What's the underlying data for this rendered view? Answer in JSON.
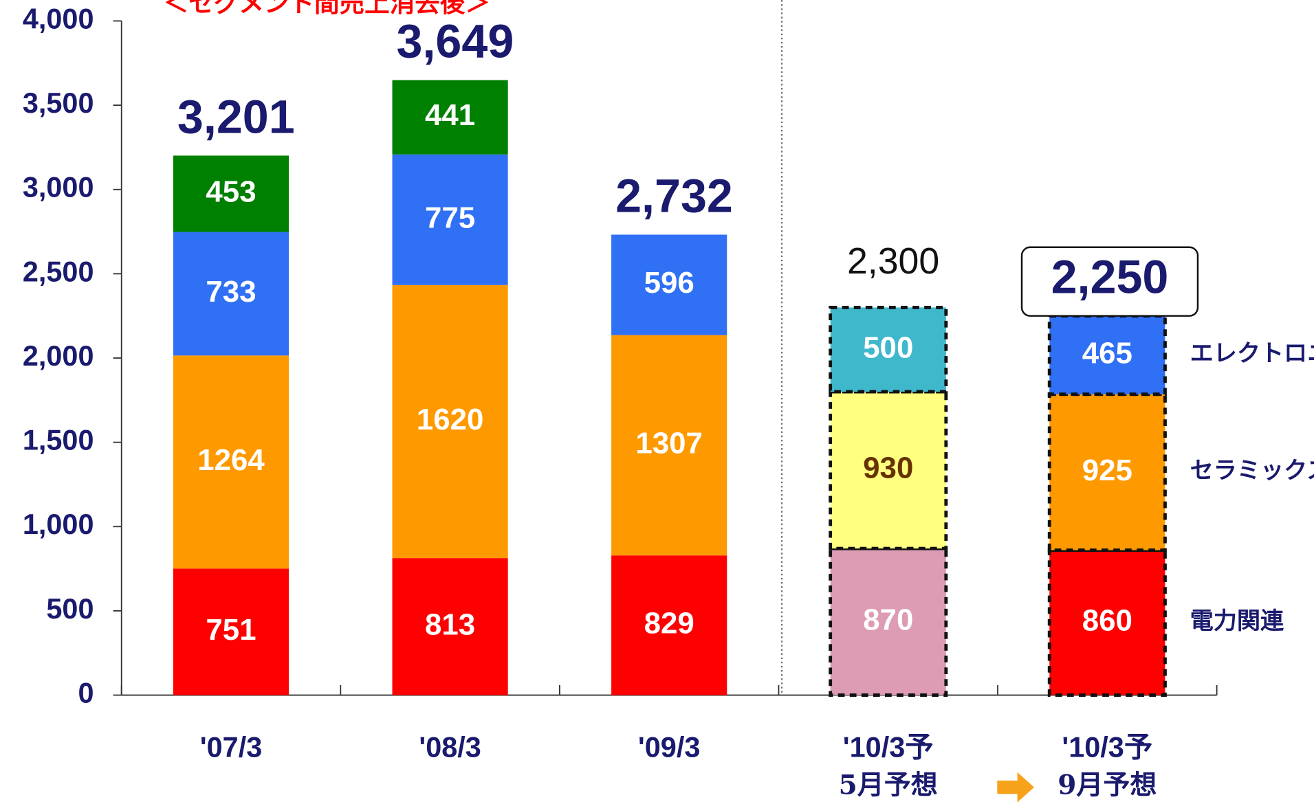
{
  "chart_data": {
    "type": "stacked-bar",
    "annotation": "＜セグメント間売上消去後＞",
    "categories": [
      "'07/3",
      "'08/3",
      "'09/3",
      "'10/3予",
      "'10/3予"
    ],
    "category_sublabels": [
      null,
      null,
      null,
      "5月予想",
      "9月予想"
    ],
    "series": [
      {
        "name": "電力関連",
        "colors": [
          "#ff0000",
          "#ff0000",
          "#ff0000",
          "#dd9bb4",
          "#ff0000"
        ],
        "values": [
          751,
          813,
          829,
          870,
          860
        ]
      },
      {
        "name": "セラミックス",
        "colors": [
          "#ff9900",
          "#ff9900",
          "#ff9900",
          "#ffff80",
          "#ff9900"
        ],
        "label_colors": [
          "#ffffff",
          "#ffffff",
          "#ffffff",
          "#663300",
          "#ffffff"
        ],
        "values": [
          1264,
          1620,
          1307,
          930,
          925
        ]
      },
      {
        "name": "エレクトロニクス",
        "colors": [
          "#3070f5",
          "#3070f5",
          "#3070f5",
          "#40b8cc",
          "#3070f5"
        ],
        "values": [
          733,
          775,
          596,
          500,
          465
        ]
      },
      {
        "colors": [
          "#008000",
          "#008000",
          null,
          null,
          null
        ],
        "values": [
          453,
          441,
          null,
          null,
          null
        ]
      }
    ],
    "totals": [
      3201,
      3649,
      2732,
      2300,
      2250
    ],
    "total_labels": [
      "3,201",
      "3,649",
      "2,732",
      "2,300",
      "2,250"
    ],
    "total_styles": [
      "bold",
      "bold",
      "bold",
      "plain",
      "boxed"
    ],
    "dashed": [
      false,
      false,
      false,
      true,
      true
    ],
    "ylim": [
      0,
      4000
    ],
    "yticks": [
      0,
      500,
      {
        "value": 1000,
        "label": "1,000"
      },
      {
        "value": 1500,
        "label": "1,500"
      },
      {
        "value": 2000,
        "label": "2,000"
      },
      {
        "value": 2500,
        "label": "2,500"
      },
      {
        "value": 3000,
        "label": "3,000"
      },
      {
        "value": 3500,
        "label": "3,500"
      },
      {
        "value": 4000,
        "label": "4,000"
      }
    ]
  }
}
